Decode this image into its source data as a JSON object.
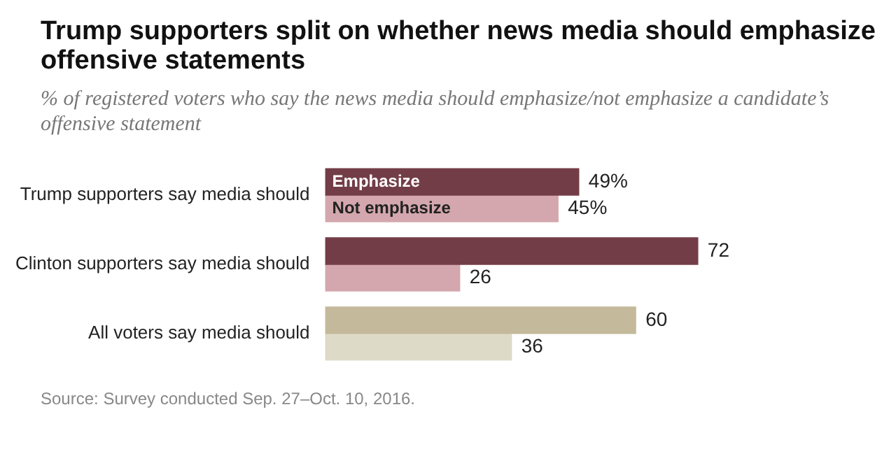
{
  "chart_data": {
    "type": "bar",
    "orientation": "horizontal",
    "title": "Trump supporters split on whether news media should emphasize offensive statements",
    "subtitle": "% of registered voters who say the news media should emphasize/not emphasize a candidate’s offensive statement",
    "categories": [
      "Trump supporters say media should",
      "Clinton supporters say media should",
      "All voters say media should"
    ],
    "series": [
      {
        "name": "Emphasize",
        "colors": [
          "#733d47",
          "#733d47",
          "#c4b99b"
        ],
        "values": [
          49,
          72,
          60
        ],
        "value_labels": [
          "49%",
          "72",
          "60"
        ]
      },
      {
        "name": "Not emphasize",
        "colors": [
          "#d3a7ad",
          "#d3a7ad",
          "#dddac7"
        ],
        "values": [
          45,
          26,
          36
        ],
        "value_labels": [
          "45%",
          "26",
          "36"
        ]
      }
    ],
    "annotations": [
      "Source: Survey conducted Sep. 27–Oct. 10, 2016."
    ],
    "grid": false,
    "legend": false
  }
}
